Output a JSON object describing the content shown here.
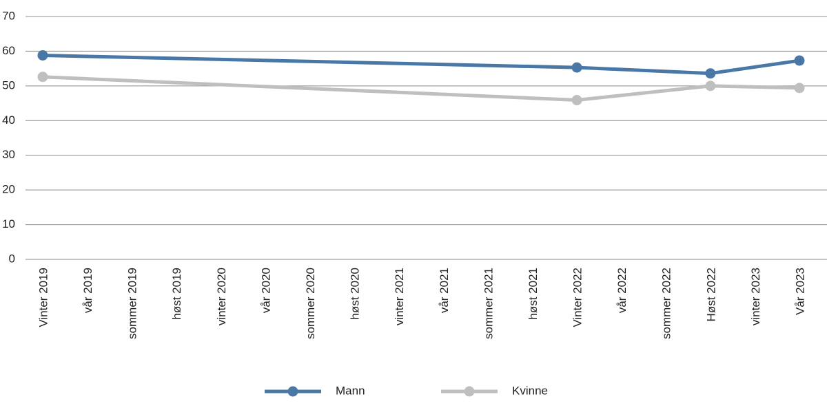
{
  "chart_data": {
    "type": "line",
    "categories": [
      "Vinter 2019",
      "vår 2019",
      "sommer 2019",
      "høst 2019",
      "vinter 2020",
      "vår 2020",
      "sommer 2020",
      "høst 2020",
      "vinter 2021",
      "vår 2021",
      "sommer 2021",
      "høst 2021",
      "Vinter 2022",
      "vår 2022",
      "sommer 2022",
      "Høst 2022",
      "vinter 2023",
      "Vår 2023"
    ],
    "series": [
      {
        "name": "Mann",
        "color": "#4a78a6",
        "values": [
          58.8,
          null,
          null,
          null,
          null,
          null,
          null,
          null,
          null,
          null,
          null,
          null,
          55.3,
          null,
          null,
          53.6,
          null,
          57.3
        ]
      },
      {
        "name": "Kvinne",
        "color": "#bfbfbf",
        "values": [
          52.6,
          null,
          null,
          null,
          null,
          null,
          null,
          null,
          null,
          null,
          null,
          null,
          45.9,
          null,
          null,
          50.0,
          null,
          49.4
        ]
      }
    ],
    "ylim": [
      0,
      70
    ],
    "yticks": [
      0,
      10,
      20,
      30,
      40,
      50,
      60,
      70
    ],
    "grid": true
  }
}
